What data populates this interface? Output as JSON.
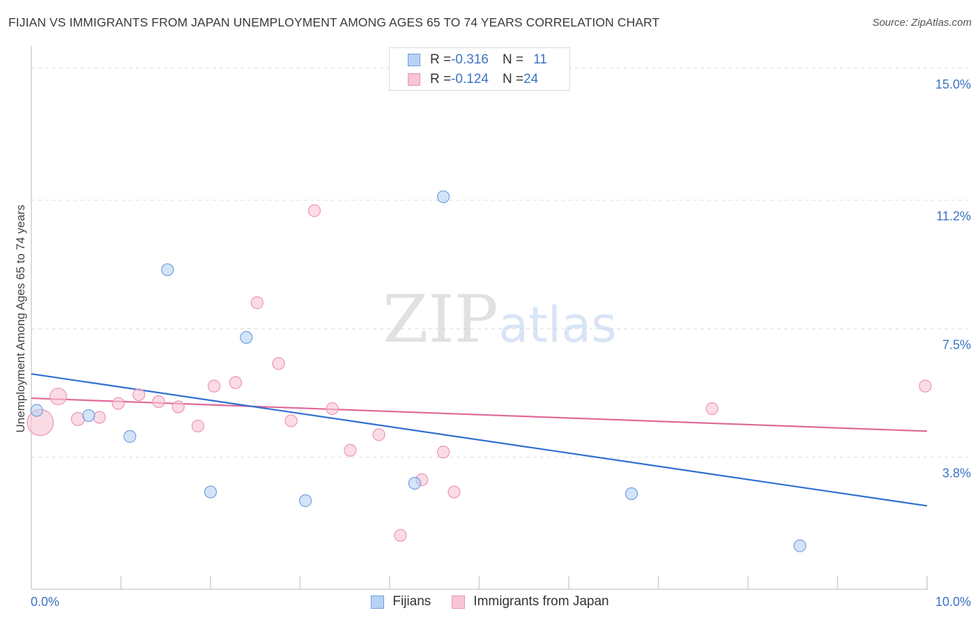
{
  "header": {
    "title": "FIJIAN VS IMMIGRANTS FROM JAPAN UNEMPLOYMENT AMONG AGES 65 TO 74 YEARS CORRELATION CHART",
    "source": "Source: ZipAtlas.com"
  },
  "watermark": {
    "zip": "ZIP",
    "atlas": "atlas"
  },
  "legend_top": {
    "rows": [
      {
        "r_label": "R = ",
        "r_value": "-0.316",
        "n_label": "N = ",
        "n_value": "11"
      },
      {
        "r_label": "R = ",
        "r_value": "-0.124",
        "n_label": "N = ",
        "n_value": "24"
      }
    ]
  },
  "legend_bottom": {
    "items": [
      {
        "label": "Fijians"
      },
      {
        "label": "Immigrants from Japan"
      }
    ]
  },
  "chart_data": {
    "type": "scatter",
    "title": "FIJIAN VS IMMIGRANTS FROM JAPAN UNEMPLOYMENT AMONG AGES 65 TO 74 YEARS CORRELATION CHART",
    "xlabel": "",
    "ylabel": "Unemployment Among Ages 65 to 74 years",
    "xlim": [
      0,
      10
    ],
    "ylim": [
      0,
      15.4
    ],
    "x_tick_labels": [
      {
        "value": 0,
        "label": "0.0%"
      },
      {
        "value": 10,
        "label": "10.0%"
      }
    ],
    "y_tick_labels": [
      {
        "value": 3.8,
        "label": "3.8%"
      },
      {
        "value": 7.5,
        "label": "7.5%"
      },
      {
        "value": 11.2,
        "label": "11.2%"
      },
      {
        "value": 15.0,
        "label": "15.0%"
      }
    ],
    "x_minor_ticks": [
      1,
      2,
      3,
      4,
      5,
      6,
      7,
      8,
      9,
      10
    ],
    "colors": {
      "fijians_fill": "#b8d2f3",
      "fijians_stroke": "#6f9ee0",
      "fijians_line": "#2f6fd0",
      "japan_fill": "#f8c5d5",
      "japan_stroke": "#ec94b2",
      "japan_line": "#e0699a",
      "grid": "#dcdcdc",
      "axis_text": "#3b73c4"
    },
    "series": [
      {
        "name": "Fijians",
        "points": [
          {
            "x": 0.06,
            "y": 5.15,
            "s": 1
          },
          {
            "x": 0.64,
            "y": 5.0,
            "s": 1
          },
          {
            "x": 1.1,
            "y": 4.4,
            "s": 1
          },
          {
            "x": 1.52,
            "y": 9.2,
            "s": 1
          },
          {
            "x": 2.0,
            "y": 2.8,
            "s": 1
          },
          {
            "x": 2.4,
            "y": 7.25,
            "s": 1
          },
          {
            "x": 3.06,
            "y": 2.55,
            "s": 1
          },
          {
            "x": 4.28,
            "y": 3.05,
            "s": 1
          },
          {
            "x": 4.6,
            "y": 11.3,
            "s": 1
          },
          {
            "x": 6.7,
            "y": 2.75,
            "s": 1
          },
          {
            "x": 8.58,
            "y": 1.25,
            "s": 1
          }
        ],
        "trend": {
          "x0": 0,
          "y0": 6.2,
          "x1": 10,
          "y1": 2.4
        }
      },
      {
        "name": "Immigrants from Japan",
        "points": [
          {
            "x": 0.1,
            "y": 4.8,
            "s": 2.2
          },
          {
            "x": 0.3,
            "y": 5.55,
            "s": 1.4
          },
          {
            "x": 0.52,
            "y": 4.9,
            "s": 1.1
          },
          {
            "x": 0.76,
            "y": 4.95,
            "s": 1
          },
          {
            "x": 0.97,
            "y": 5.35,
            "s": 1
          },
          {
            "x": 1.2,
            "y": 5.6,
            "s": 1
          },
          {
            "x": 1.42,
            "y": 5.4,
            "s": 1
          },
          {
            "x": 1.64,
            "y": 5.25,
            "s": 1
          },
          {
            "x": 1.86,
            "y": 4.7,
            "s": 1
          },
          {
            "x": 2.04,
            "y": 5.85,
            "s": 1
          },
          {
            "x": 2.28,
            "y": 5.95,
            "s": 1
          },
          {
            "x": 2.52,
            "y": 8.25,
            "s": 1
          },
          {
            "x": 2.76,
            "y": 6.5,
            "s": 1
          },
          {
            "x": 2.9,
            "y": 4.85,
            "s": 1
          },
          {
            "x": 3.16,
            "y": 10.9,
            "s": 1
          },
          {
            "x": 3.36,
            "y": 5.2,
            "s": 1
          },
          {
            "x": 3.56,
            "y": 4.0,
            "s": 1
          },
          {
            "x": 3.88,
            "y": 4.45,
            "s": 1
          },
          {
            "x": 4.12,
            "y": 1.55,
            "s": 1
          },
          {
            "x": 4.36,
            "y": 3.15,
            "s": 1
          },
          {
            "x": 4.6,
            "y": 3.95,
            "s": 1
          },
          {
            "x": 4.72,
            "y": 2.8,
            "s": 1
          },
          {
            "x": 7.6,
            "y": 5.2,
            "s": 1
          },
          {
            "x": 9.98,
            "y": 5.85,
            "s": 1
          }
        ],
        "trend": {
          "x0": 0,
          "y0": 5.5,
          "x1": 10,
          "y1": 4.55
        }
      }
    ]
  }
}
